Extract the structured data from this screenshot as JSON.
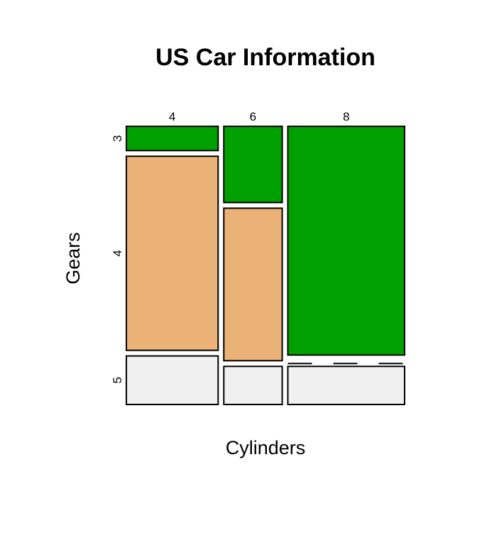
{
  "chart_data": {
    "type": "mosaic",
    "title": "US Car Information",
    "xlabel": "Cylinders",
    "ylabel": "Gears",
    "x_categories": [
      "4",
      "6",
      "8"
    ],
    "y_categories": [
      "3",
      "4",
      "5"
    ],
    "cell_counts": {
      "4": {
        "3": 1,
        "4": 8,
        "5": 2
      },
      "6": {
        "3": 2,
        "4": 4,
        "5": 1
      },
      "8": {
        "3": 12,
        "4": 0,
        "5": 2
      }
    },
    "colors": {
      "3": "#00a000",
      "4": "#ebb277",
      "5": "#f0f0f0"
    }
  }
}
